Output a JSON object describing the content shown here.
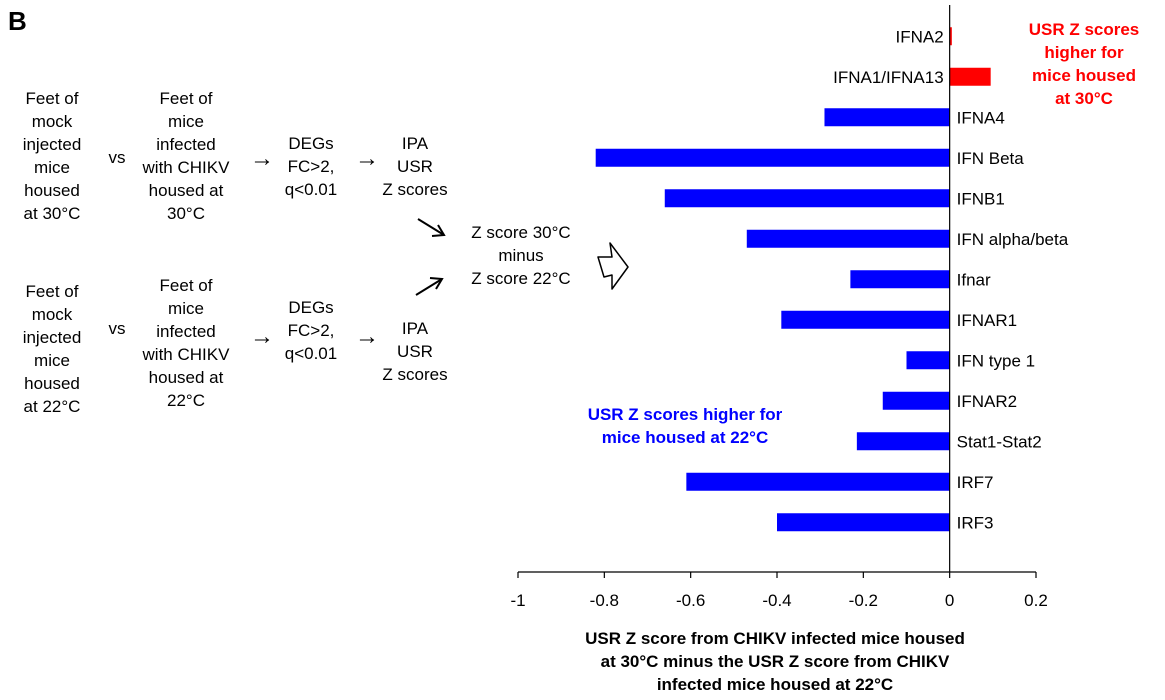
{
  "panel_label": "B",
  "flow": {
    "row1": {
      "mock": "Feet of\nmock\ninjected\nmice\nhoused\nat 30°C",
      "vs": "vs",
      "infected": "Feet of\nmice\ninfected\nwith CHIKV\nhoused at\n30°C",
      "degs": "DEGs\nFC>2,\nq<0.01",
      "ipa": "IPA\nUSR\nZ scores"
    },
    "row2": {
      "mock": "Feet of\nmock\ninjected\nmice\nhoused\nat 22°C",
      "vs": "vs",
      "infected": "Feet of\nmice\ninfected\nwith CHIKV\nhoused  at\n22°C",
      "degs": "DEGs\nFC>2,\nq<0.01",
      "ipa": "IPA\nUSR\nZ scores"
    },
    "diff": "Z score 30°C\nminus\nZ score 22°C"
  },
  "annotations": {
    "red": "USR Z scores\nhigher for\nmice housed\nat 30°C",
    "blue": "USR Z scores  higher for\nmice housed at 22°C",
    "red_color": "#ff0000",
    "blue_color": "#0000ff"
  },
  "chart_data": {
    "type": "bar",
    "orientation": "horizontal",
    "categories": [
      "IFNA2",
      "IFNA1/IFNA13",
      "IFNA4",
      "IFN Beta",
      "IFNB1",
      "IFN alpha/beta",
      "Ifnar",
      "IFNAR1",
      "IFN type 1",
      "IFNAR2",
      "Stat1-Stat2",
      "IRF7",
      "IRF3"
    ],
    "values": [
      0.005,
      0.095,
      -0.29,
      -0.82,
      -0.66,
      -0.47,
      -0.23,
      -0.39,
      -0.1,
      -0.155,
      -0.215,
      -0.61,
      -0.4
    ],
    "positive_color": "#ff0000",
    "negative_color": "#0000ff",
    "xlim": [
      -1,
      0.2
    ],
    "xticks": [
      -1,
      -0.8,
      -0.6,
      -0.4,
      -0.2,
      0,
      0.2
    ],
    "xlabel": "USR Z score from CHIKV infected mice housed\nat 30°C minus the USR Z score from CHIKV\ninfected mice housed at 22°C",
    "grid": false
  }
}
